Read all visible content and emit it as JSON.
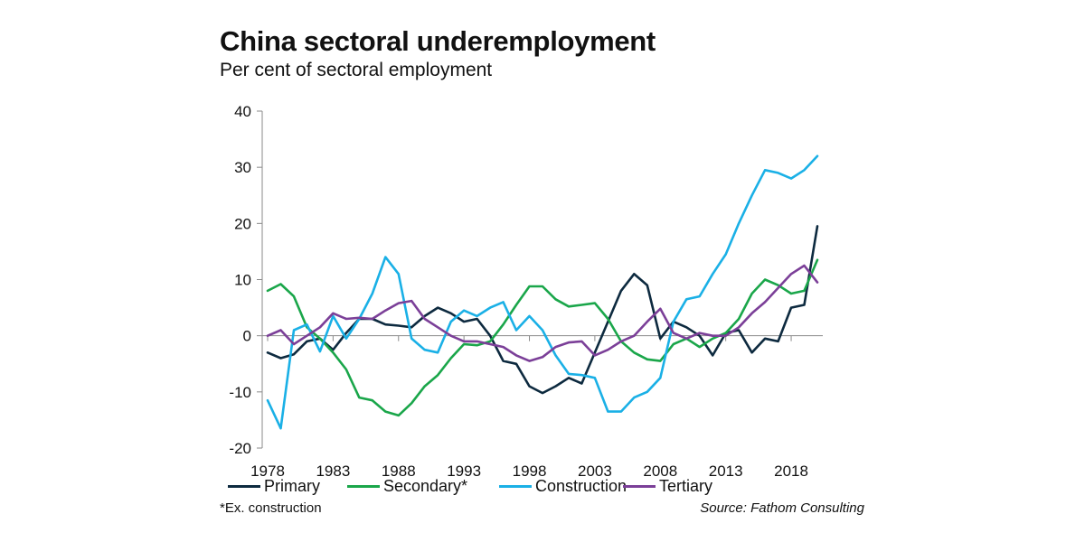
{
  "header": {
    "title": "China sectoral underemployment",
    "subtitle": "Per cent of sectoral employment"
  },
  "footer": {
    "footnote": "*Ex. construction",
    "source": "Source: Fathom Consulting"
  },
  "chart_data": {
    "type": "line",
    "title": "China sectoral underemployment",
    "subtitle": "Per cent of sectoral employment",
    "xlabel": "",
    "ylabel": "",
    "xlim": [
      1977,
      2021
    ],
    "ylim": [
      -20,
      40
    ],
    "y_ticks": [
      -20,
      -10,
      0,
      10,
      20,
      30,
      40
    ],
    "x_ticks": [
      1978,
      1983,
      1988,
      1993,
      1998,
      2003,
      2008,
      2013,
      2018
    ],
    "grid": false,
    "legend_position": "bottom",
    "x": [
      1978,
      1979,
      1980,
      1981,
      1982,
      1983,
      1984,
      1985,
      1986,
      1987,
      1988,
      1989,
      1990,
      1991,
      1992,
      1993,
      1994,
      1995,
      1996,
      1997,
      1998,
      1999,
      2000,
      2001,
      2002,
      2003,
      2004,
      2005,
      2006,
      2007,
      2008,
      2009,
      2010,
      2011,
      2012,
      2013,
      2014,
      2015,
      2016,
      2017,
      2018,
      2019,
      2020
    ],
    "series": [
      {
        "name": "Primary",
        "color": "#0d2a3f",
        "values": [
          -3.0,
          -4.0,
          -3.3,
          -1.0,
          -0.5,
          -2.5,
          0.5,
          3.0,
          3.0,
          2.0,
          1.8,
          1.5,
          3.5,
          5.0,
          4.0,
          2.5,
          3.0,
          0.0,
          -4.5,
          -5.0,
          -9.0,
          -10.2,
          -9.0,
          -7.5,
          -8.5,
          -3.0,
          2.5,
          8.0,
          11.0,
          9.0,
          -0.5,
          2.5,
          1.5,
          0.0,
          -3.5,
          0.5,
          1.0,
          -3.0,
          -0.5,
          -1.0,
          5.0,
          5.5,
          19.5
        ]
      },
      {
        "name": "Secondary*",
        "color": "#1aa64a",
        "values": [
          8.0,
          9.2,
          7.0,
          1.5,
          -0.5,
          -3.0,
          -6.0,
          -11.0,
          -11.5,
          -13.5,
          -14.2,
          -12.0,
          -9.0,
          -7.0,
          -4.0,
          -1.5,
          -1.7,
          -1.0,
          2.0,
          5.5,
          8.8,
          8.8,
          6.5,
          5.2,
          5.5,
          5.8,
          3.0,
          -1.0,
          -3.0,
          -4.2,
          -4.5,
          -1.5,
          -0.5,
          -2.0,
          -0.5,
          0.5,
          3.0,
          7.5,
          10.0,
          9.0,
          7.5,
          8.0,
          13.5
        ]
      },
      {
        "name": "Construction",
        "color": "#1ab0e6",
        "values": [
          -11.5,
          -16.5,
          1.0,
          2.0,
          -2.8,
          3.5,
          -0.5,
          3.0,
          7.5,
          14.0,
          11.0,
          -0.5,
          -2.5,
          -3.0,
          2.5,
          4.5,
          3.5,
          5.0,
          6.0,
          1.0,
          3.5,
          1.0,
          -3.5,
          -6.8,
          -7.0,
          -7.5,
          -13.5,
          -13.5,
          -11.0,
          -10.0,
          -7.5,
          2.5,
          6.5,
          7.0,
          11.0,
          14.5,
          20.0,
          25.0,
          29.5,
          29.0,
          28.0,
          29.5,
          32.0
        ]
      },
      {
        "name": "Tertiary",
        "color": "#7b3f98",
        "values": [
          0.0,
          1.0,
          -1.5,
          0.0,
          1.5,
          4.0,
          3.0,
          3.2,
          3.0,
          4.5,
          5.8,
          6.2,
          3.0,
          1.5,
          0.0,
          -1.0,
          -1.0,
          -1.5,
          -2.0,
          -3.5,
          -4.5,
          -3.8,
          -2.0,
          -1.2,
          -1.0,
          -3.5,
          -2.5,
          -1.0,
          0.0,
          2.5,
          4.8,
          0.5,
          -0.5,
          0.5,
          0.0,
          0.0,
          1.5,
          4.0,
          6.0,
          8.5,
          11.0,
          12.5,
          9.5
        ]
      }
    ]
  }
}
